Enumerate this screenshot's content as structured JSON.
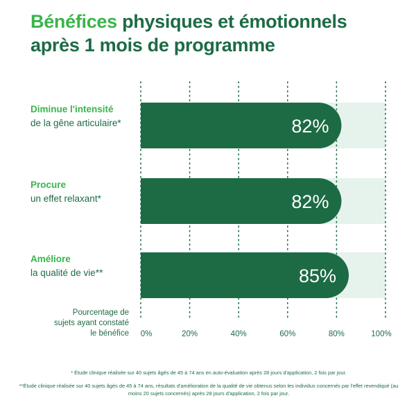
{
  "title": {
    "accent": "Bénéfices",
    "rest_line1": "physiques et émotionnels",
    "line2": "après 1 mois de programme"
  },
  "colors": {
    "bar": "#1d6b45",
    "track": "#e6f3ec",
    "accent": "#39b54a",
    "text": "#1d6b45"
  },
  "chart_data": {
    "type": "bar",
    "orientation": "horizontal",
    "categories": [
      [
        "Diminue l'intensité",
        "de la gêne articulaire*"
      ],
      [
        "Procure",
        "un effet relaxant*"
      ],
      [
        "Améliore",
        "la qualité de vie**"
      ]
    ],
    "values": [
      82,
      82,
      85
    ],
    "value_labels": [
      "82%",
      "82%",
      "85%"
    ],
    "xlabel": [
      "Pourcentage de",
      "sujets ayant constaté",
      "le bénéfice"
    ],
    "xticks": [
      "0%",
      "20%",
      "40%",
      "60%",
      "80%",
      "100%"
    ],
    "xlim": [
      0,
      100
    ],
    "grid": "dotted-vertical",
    "legend": "none"
  },
  "footnotes": [
    "* Étude clinique réalisée sur 40 sujets âgés de 45 à 74 ans en auto-évaluation après 28 jours d'application, 2 fois par jour.",
    "**Étude clinique réalisée sur 40 sujets âgés de 45 à 74 ans, résultats d'amélioration de la qualité de vie obtenus selon les individus concernés par l'effet revendiqué (au moins 20 sujets concernés) après 28 jours d'application, 2 fois par jour."
  ]
}
